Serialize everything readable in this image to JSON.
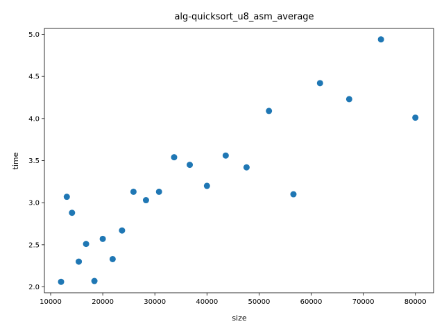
{
  "chart_data": {
    "type": "scatter",
    "title": "alg-quicksort_u8_asm_average",
    "xlabel": "size",
    "ylabel": "time",
    "xlim": [
      8800,
      83500
    ],
    "ylim": [
      1.93,
      5.07
    ],
    "xticks": [
      10000,
      20000,
      30000,
      40000,
      50000,
      60000,
      70000,
      80000
    ],
    "yticks": [
      2.0,
      2.5,
      3.0,
      3.5,
      4.0,
      4.5,
      5.0
    ],
    "xtick_labels": [
      "10000",
      "20000",
      "30000",
      "40000",
      "50000",
      "60000",
      "70000",
      "80000"
    ],
    "ytick_labels": [
      "2.0",
      "2.5",
      "3.0",
      "3.5",
      "4.0",
      "4.5",
      "5.0"
    ],
    "grid": false,
    "marker_color": "#1f77b4",
    "points": [
      {
        "x": 12000,
        "y": 2.06
      },
      {
        "x": 13100,
        "y": 3.07
      },
      {
        "x": 14100,
        "y": 2.88
      },
      {
        "x": 15400,
        "y": 2.3
      },
      {
        "x": 16800,
        "y": 2.51
      },
      {
        "x": 18400,
        "y": 2.07
      },
      {
        "x": 20000,
        "y": 2.57
      },
      {
        "x": 21900,
        "y": 2.33
      },
      {
        "x": 23700,
        "y": 2.67
      },
      {
        "x": 25900,
        "y": 3.13
      },
      {
        "x": 28300,
        "y": 3.03
      },
      {
        "x": 30800,
        "y": 3.13
      },
      {
        "x": 33700,
        "y": 3.54
      },
      {
        "x": 36700,
        "y": 3.45
      },
      {
        "x": 40000,
        "y": 3.2
      },
      {
        "x": 43600,
        "y": 3.56
      },
      {
        "x": 47600,
        "y": 3.42
      },
      {
        "x": 51900,
        "y": 4.09
      },
      {
        "x": 56600,
        "y": 3.1
      },
      {
        "x": 61700,
        "y": 4.42
      },
      {
        "x": 67300,
        "y": 4.23
      },
      {
        "x": 73400,
        "y": 4.94
      },
      {
        "x": 80000,
        "y": 4.01
      }
    ]
  }
}
